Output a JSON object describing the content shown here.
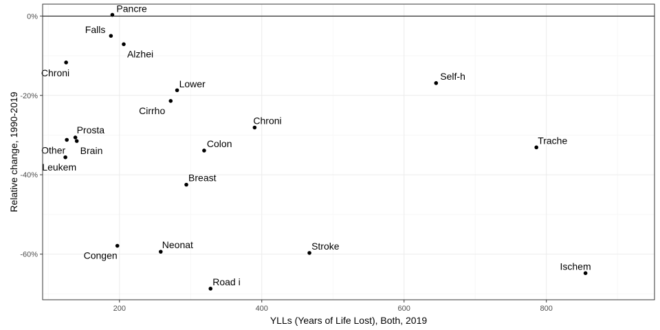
{
  "chart_data": {
    "type": "scatter",
    "title": "",
    "xlabel": "YLLs (Years of Life Lost), Both, 2019",
    "ylabel": "Relative change, 1990-2019",
    "xlim": [
      92,
      952
    ],
    "ylim": [
      -0.715,
      0.03
    ],
    "x_ticks": [
      200,
      400,
      600,
      800
    ],
    "x_tick_labels": [
      "200",
      "400",
      "600",
      "800"
    ],
    "y_ticks": [
      0,
      -0.2,
      -0.4,
      -0.6
    ],
    "y_tick_labels": [
      "0%",
      "-20%",
      "-40%",
      "-60%"
    ],
    "grid": true,
    "reference_line_y": 0,
    "points": [
      {
        "label": "Pancre",
        "x": 190,
        "y": 0.003,
        "anchor": "start",
        "dx": 6,
        "dy": -4
      },
      {
        "label": "Falls",
        "x": 188,
        "y": -0.05,
        "anchor": "end",
        "dx": -8,
        "dy": -4
      },
      {
        "label": "Alzhei",
        "x": 206,
        "y": -0.071,
        "anchor": "start",
        "dx": 5,
        "dy": 19
      },
      {
        "label": "Chroni",
        "x": 125,
        "y": -0.117,
        "anchor": "end",
        "dx": 5,
        "dy": 20
      },
      {
        "label": "Lower",
        "x": 281,
        "y": -0.187,
        "anchor": "start",
        "dx": 3,
        "dy": -4
      },
      {
        "label": "Cirrho",
        "x": 272,
        "y": -0.214,
        "anchor": "end",
        "dx": -8,
        "dy": 19
      },
      {
        "label": "Prosta",
        "x": 138,
        "y": -0.306,
        "anchor": "start",
        "dx": 2,
        "dy": -6
      },
      {
        "label": "Brain",
        "x": 140,
        "y": -0.315,
        "anchor": "start",
        "dx": 5,
        "dy": 19
      },
      {
        "label": "Other",
        "x": 126,
        "y": -0.312,
        "anchor": "end",
        "dx": -2,
        "dy": 20
      },
      {
        "label": "Leukem",
        "x": 124,
        "y": -0.356,
        "anchor": "end",
        "dx": 16,
        "dy": 19
      },
      {
        "label": "Chroni",
        "x": 390,
        "y": -0.281,
        "anchor": "start",
        "dx": -2,
        "dy": -5
      },
      {
        "label": "Colon",
        "x": 319,
        "y": -0.339,
        "anchor": "start",
        "dx": 4,
        "dy": -5
      },
      {
        "label": "Breast",
        "x": 294,
        "y": -0.425,
        "anchor": "start",
        "dx": 3,
        "dy": -5
      },
      {
        "label": "Congen",
        "x": 197,
        "y": -0.579,
        "anchor": "end",
        "dx": 0,
        "dy": 19
      },
      {
        "label": "Neonat",
        "x": 258,
        "y": -0.594,
        "anchor": "start",
        "dx": 2,
        "dy": -5
      },
      {
        "label": "Road i",
        "x": 328,
        "y": -0.687,
        "anchor": "start",
        "dx": 3,
        "dy": -5
      },
      {
        "label": "Stroke",
        "x": 467,
        "y": -0.597,
        "anchor": "start",
        "dx": 3,
        "dy": -5
      },
      {
        "label": "Self-h",
        "x": 645,
        "y": -0.169,
        "anchor": "start",
        "dx": 6,
        "dy": -5
      },
      {
        "label": "Trache",
        "x": 786,
        "y": -0.331,
        "anchor": "start",
        "dx": 2,
        "dy": -5
      },
      {
        "label": "Ischem",
        "x": 855,
        "y": -0.648,
        "anchor": "end",
        "dx": 8,
        "dy": -5
      }
    ]
  }
}
